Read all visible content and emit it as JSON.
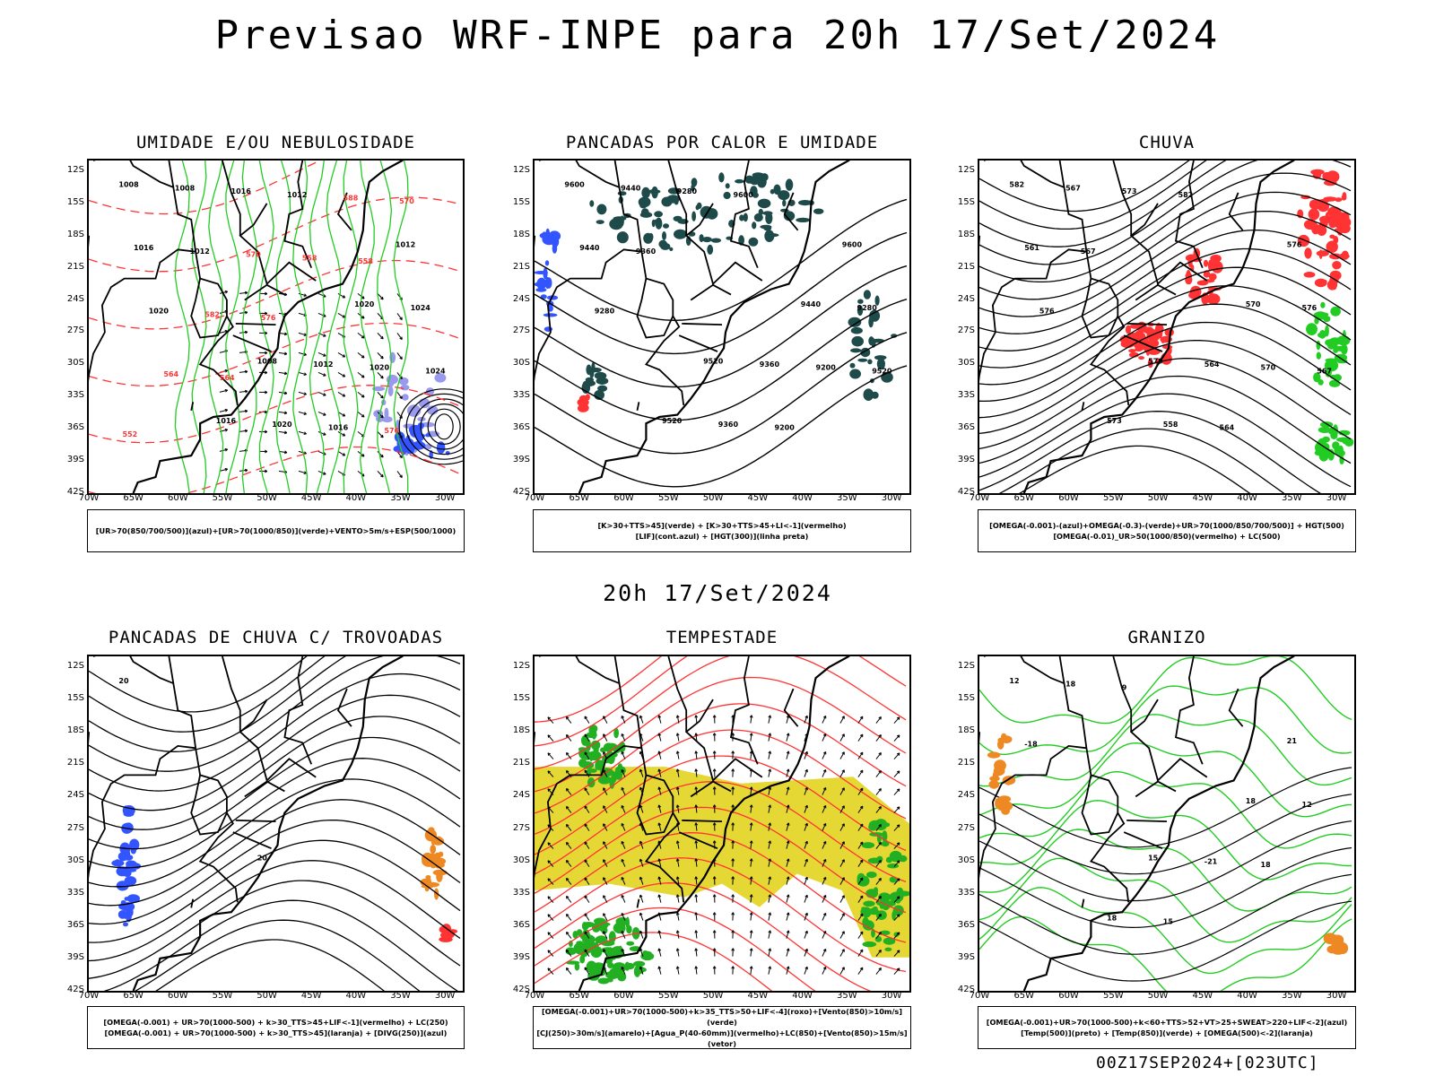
{
  "title": "Previsao WRF-INPE  para 20h 17/Set/2024",
  "mid_title": "20h 17/Set/2024",
  "footer": "00Z17SEP2024+[023UTC]",
  "latitudes": [
    "12S",
    "15S",
    "18S",
    "21S",
    "24S",
    "27S",
    "30S",
    "33S",
    "36S",
    "39S",
    "42S"
  ],
  "longitudes": [
    "70W",
    "65W",
    "60W",
    "55W",
    "50W",
    "45W",
    "40W",
    "35W",
    "30W"
  ],
  "colors": {
    "green": "#22cc22",
    "red": "#ff3333",
    "blue": "#3355ff",
    "darkteal": "#1e4a4a",
    "yellow": "#e5d835",
    "orange": "#ee8822",
    "lavender": "#9999ee"
  },
  "panels": [
    {
      "title": "UMIDADE E/OU NEBULOSIDADE",
      "legend": [
        "[UR>70(850/700/500)](azul)+[UR>70(1000/850)](verde)+VENTO>5m/s+ESP(500/1000)"
      ],
      "contour_labels": [
        "1008",
        "1008",
        "1012",
        "1016",
        "1020",
        "1008",
        "1012",
        "1016",
        "1020",
        "1024",
        "1016",
        "1020",
        "1012",
        "1016",
        "1020",
        "1012",
        "1024",
        "570",
        "576",
        "582",
        "588",
        "564",
        "558",
        "552",
        "576",
        "570",
        "564",
        "558"
      ]
    },
    {
      "title": "PANCADAS POR CALOR E UMIDADE",
      "legend": [
        "[K>30+TTS>45](verde) + [K>30+TTS>45+LI<-1](vermelho)",
        "[LIF](cont.azul) + [HGT(300)](linha preta)"
      ],
      "contour_labels": [
        "9600",
        "9520",
        "9600",
        "9520",
        "9440",
        "9440",
        "9360",
        "9440",
        "9360",
        "9280",
        "9280",
        "9200",
        "9360",
        "9200",
        "9280",
        "9600",
        "9520"
      ]
    },
    {
      "title": "CHUVA",
      "legend": [
        "[OMEGA(-0.001)-(azul)+OMEGA(-0.3)-(verde)+UR>70(1000/850/700/500)] + HGT(500)",
        "[OMEGA(-0.01)_UR>50(1000/850)(vermelho) + LC(500)"
      ],
      "contour_labels": [
        "582",
        "579",
        "576",
        "573",
        "570",
        "567",
        "564",
        "561",
        "558",
        "576",
        "573",
        "570",
        "567",
        "564",
        "576",
        "582",
        "567"
      ]
    },
    {
      "title": "PANCADAS DE CHUVA C/ TROVOADAS",
      "legend": [
        "[OMEGA(-0.001) + UR>70(1000-500) + k>30_TTS>45+LIF<-1](vermelho) + LC(250)",
        "[OMEGA(-0.001) + UR>70(1000-500) + k>30_TTS>45](laranja) + [DIVG(250)](azul)"
      ],
      "contour_labels": [
        "20",
        "20"
      ]
    },
    {
      "title": "TEMPESTADE",
      "legend": [
        "[OMEGA(-0.001)+UR>70(1000-500)+k>35_TTS>50+LIF<-4](roxo)+[Vento(850)>10m/s](verde)",
        "[CJ(250)>30m/s](amarelo)+[Agua_P(40-60mm)](vermelho)+LC(850)+[Vento(850)>15m/s](vetor)"
      ],
      "contour_labels": []
    },
    {
      "title": "GRANIZO",
      "legend": [
        "[OMEGA(-0.001)+UR>70(1000-500)+k<60+TTS>52+VT>25+SWEAT>220+LIF<-2](azul)",
        "[Temp(500)](preto) + [Temp(850)](verde) + [OMEGA(500)<-2](laranja)"
      ],
      "contour_labels": [
        "12",
        "15",
        "21",
        "18",
        "18",
        "18",
        "-21",
        "-18",
        "15",
        "12",
        "9",
        "18"
      ]
    }
  ]
}
